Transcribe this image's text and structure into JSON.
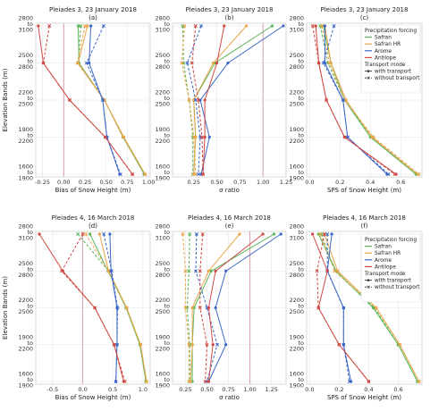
{
  "figure": {
    "ylabel": "Elevation Bands (m)",
    "elevation_bands": [
      "2800\nto\n3100",
      "2500\nto\n2800",
      "2200\nto\n2500",
      "1900\nto\n2200",
      "1600\nto\n1900"
    ],
    "colors": {
      "Safran": "#59b65a",
      "Safran HR": "#e9a64a",
      "Arome": "#3d67c8",
      "Antilope": "#cf4a45",
      "reference": "#d9a0a8",
      "grid": "#e6e6e6"
    },
    "legend": {
      "title1": "Precipitation forcing",
      "forcings": [
        "Safran",
        "Safran HR",
        "Arome",
        "Antilope"
      ],
      "title2": "Transport mode",
      "modes": [
        "with transport",
        "without transport"
      ]
    }
  },
  "chart_data": [
    {
      "type": "line",
      "id": "a",
      "title": "Pleiades 3, 23 January 2018",
      "subtitle": "(a)",
      "xlabel": "Bias of Snow Height (m)",
      "xlim": [
        -0.33,
        1.02
      ],
      "xticks": [
        -0.25,
        0.0,
        0.25,
        0.5,
        0.75,
        1.0
      ],
      "xtick_labels": [
        "-0.25",
        "0.00",
        "0.25",
        "0.50",
        "0.75",
        "1.00"
      ],
      "ref_line": 0,
      "series": [
        {
          "forcing": "Safran",
          "mode": "with",
          "values": [
            0.17,
            0.18,
            0.48,
            0.7,
            0.95
          ]
        },
        {
          "forcing": "Safran",
          "mode": "without",
          "values": [
            0.2,
            0.17,
            0.48,
            0.7,
            0.95
          ]
        },
        {
          "forcing": "Safran HR",
          "mode": "with",
          "values": [
            0.28,
            0.17,
            0.48,
            0.71,
            0.96
          ]
        },
        {
          "forcing": "Safran HR",
          "mode": "without",
          "values": [
            0.25,
            0.16,
            0.48,
            0.7,
            0.96
          ]
        },
        {
          "forcing": "Arome",
          "mode": "with",
          "values": [
            0.32,
            0.3,
            0.46,
            0.51,
            0.66
          ]
        },
        {
          "forcing": "Arome",
          "mode": "without",
          "values": [
            0.47,
            0.27,
            0.46,
            0.51,
            0.67
          ]
        },
        {
          "forcing": "Antilope",
          "mode": "with",
          "values": [
            -0.3,
            -0.24,
            0.07,
            0.49,
            0.81
          ]
        },
        {
          "forcing": "Antilope",
          "mode": "without",
          "values": [
            -0.17,
            -0.24,
            0.07,
            0.49,
            0.81
          ]
        }
      ]
    },
    {
      "type": "line",
      "id": "b",
      "title": "Pleiades 3, 23 January 2018",
      "subtitle": "(b)",
      "xlabel": "σ ratio",
      "xlim": [
        0.02,
        1.25
      ],
      "xticks": [
        0.25,
        0.5,
        0.75,
        1.0,
        1.25
      ],
      "xtick_labels": [
        "0.25",
        "0.50",
        "0.75",
        "1.00",
        "1.25"
      ],
      "ref_line": 1,
      "series": [
        {
          "forcing": "Safran",
          "mode": "with",
          "values": [
            1.1,
            0.48,
            0.25,
            0.27,
            0.25
          ]
        },
        {
          "forcing": "Safran",
          "mode": "without",
          "values": [
            0.13,
            0.14,
            0.2,
            0.24,
            0.24
          ]
        },
        {
          "forcing": "Safran HR",
          "mode": "with",
          "values": [
            0.82,
            0.46,
            0.25,
            0.27,
            0.25
          ]
        },
        {
          "forcing": "Safran HR",
          "mode": "without",
          "values": [
            0.15,
            0.12,
            0.2,
            0.25,
            0.27
          ]
        },
        {
          "forcing": "Arome",
          "mode": "with",
          "values": [
            1.22,
            0.62,
            0.32,
            0.42,
            0.33
          ]
        },
        {
          "forcing": "Arome",
          "mode": "without",
          "values": [
            0.33,
            0.18,
            0.27,
            0.32,
            0.3
          ]
        },
        {
          "forcing": "Antilope",
          "mode": "with",
          "values": [
            0.58,
            0.5,
            0.37,
            0.37,
            0.35
          ]
        },
        {
          "forcing": "Antilope",
          "mode": "without",
          "values": [
            0.27,
            0.23,
            0.3,
            0.34,
            0.35
          ]
        }
      ]
    },
    {
      "type": "line",
      "id": "c",
      "title": "Pleiades 3, 23 January 2018",
      "subtitle": "(c)",
      "xlabel": "SPS of Snow Height (m)",
      "xlim": [
        -0.02,
        0.74
      ],
      "xticks": [
        0.0,
        0.2,
        0.4,
        0.6
      ],
      "xtick_labels": [
        "0.0",
        "0.2",
        "0.4",
        "0.6"
      ],
      "series": [
        {
          "forcing": "Safran",
          "mode": "with",
          "values": [
            0.09,
            0.14,
            0.23,
            0.4,
            0.7
          ]
        },
        {
          "forcing": "Safran",
          "mode": "without",
          "values": [
            0.07,
            0.12,
            0.23,
            0.41,
            0.71
          ]
        },
        {
          "forcing": "Safran HR",
          "mode": "with",
          "values": [
            0.1,
            0.14,
            0.24,
            0.41,
            0.71
          ]
        },
        {
          "forcing": "Safran HR",
          "mode": "without",
          "values": [
            0.08,
            0.13,
            0.23,
            0.42,
            0.72
          ]
        },
        {
          "forcing": "Arome",
          "mode": "with",
          "values": [
            0.1,
            0.1,
            0.22,
            0.25,
            0.51
          ]
        },
        {
          "forcing": "Arome",
          "mode": "without",
          "values": [
            0.16,
            0.09,
            0.22,
            0.25,
            0.52
          ]
        },
        {
          "forcing": "Antilope",
          "mode": "with",
          "values": [
            0.04,
            0.06,
            0.11,
            0.23,
            0.57
          ]
        },
        {
          "forcing": "Antilope",
          "mode": "without",
          "values": [
            0.02,
            0.06,
            0.11,
            0.23,
            0.56
          ]
        }
      ]
    },
    {
      "type": "line",
      "id": "d",
      "title": "Pleiades 4, 16 March 2018",
      "subtitle": "(d)",
      "xlabel": "Bias of Snow Height (m)",
      "xlim": [
        -0.78,
        1.12
      ],
      "xticks": [
        -0.5,
        0.0,
        0.5,
        1.0
      ],
      "xtick_labels": [
        "-0.5",
        "0.0",
        "0.5",
        "1.0"
      ],
      "ref_line": 0,
      "series": [
        {
          "forcing": "Safran",
          "mode": "with",
          "values": [
            0.12,
            0.42,
            0.72,
            0.95,
            1.05
          ]
        },
        {
          "forcing": "Safran",
          "mode": "without",
          "values": [
            -0.08,
            0.43,
            0.72,
            0.95,
            1.05
          ]
        },
        {
          "forcing": "Safran HR",
          "mode": "with",
          "values": [
            0.28,
            0.43,
            0.73,
            0.96,
            1.06
          ]
        },
        {
          "forcing": "Safran HR",
          "mode": "without",
          "values": [
            0.05,
            0.43,
            0.73,
            0.96,
            1.06
          ]
        },
        {
          "forcing": "Arome",
          "mode": "with",
          "values": [
            0.45,
            0.47,
            0.57,
            0.57,
            0.55
          ]
        },
        {
          "forcing": "Arome",
          "mode": "without",
          "values": [
            0.35,
            0.48,
            0.58,
            0.57,
            0.55
          ]
        },
        {
          "forcing": "Antilope",
          "mode": "with",
          "values": [
            -0.72,
            -0.33,
            0.2,
            0.52,
            0.68
          ]
        },
        {
          "forcing": "Antilope",
          "mode": "without",
          "values": [
            0.0,
            -0.35,
            0.2,
            0.52,
            0.7
          ]
        }
      ]
    },
    {
      "type": "line",
      "id": "e",
      "title": "Pleiades 4, 16 March 2018",
      "subtitle": "(e)",
      "xlabel": "σ ratio",
      "xlim": [
        0.1,
        1.42
      ],
      "xticks": [
        0.25,
        0.5,
        0.75,
        1.0,
        1.25
      ],
      "xtick_labels": [
        "0.25",
        "0.50",
        "0.75",
        "1.00",
        "1.25"
      ],
      "ref_line": 1,
      "series": [
        {
          "forcing": "Safran",
          "mode": "with",
          "values": [
            1.28,
            0.55,
            0.35,
            0.33,
            0.33
          ]
        },
        {
          "forcing": "Safran",
          "mode": "without",
          "values": [
            0.3,
            0.29,
            0.27,
            0.3,
            0.3
          ]
        },
        {
          "forcing": "Safran HR",
          "mode": "with",
          "values": [
            0.88,
            0.52,
            0.33,
            0.33,
            0.31
          ]
        },
        {
          "forcing": "Safran HR",
          "mode": "without",
          "values": [
            0.22,
            0.25,
            0.25,
            0.29,
            0.29
          ]
        },
        {
          "forcing": "Arome",
          "mode": "with",
          "values": [
            1.36,
            0.72,
            0.6,
            0.72,
            0.52
          ]
        },
        {
          "forcing": "Arome",
          "mode": "without",
          "values": [
            0.38,
            0.37,
            0.5,
            0.62,
            0.5
          ]
        },
        {
          "forcing": "Antilope",
          "mode": "with",
          "values": [
            1.15,
            0.6,
            0.52,
            0.57,
            0.52
          ]
        },
        {
          "forcing": "Antilope",
          "mode": "without",
          "values": [
            0.45,
            0.42,
            0.42,
            0.5,
            0.48
          ]
        }
      ]
    },
    {
      "type": "line",
      "id": "f",
      "title": "Pleiades 4, 16 March 2018",
      "subtitle": "(f)",
      "xlabel": "SPS of Snow Height (m)",
      "xlim": [
        -0.02,
        0.76
      ],
      "xticks": [
        0.0,
        0.2,
        0.4,
        0.6
      ],
      "xtick_labels": [
        "0.0",
        "0.2",
        "0.4",
        "0.6"
      ],
      "series": [
        {
          "forcing": "Safran",
          "mode": "with",
          "values": [
            0.06,
            0.18,
            0.43,
            0.6,
            0.73
          ]
        },
        {
          "forcing": "Safran",
          "mode": "without",
          "values": [
            0.08,
            0.17,
            0.44,
            0.6,
            0.73
          ]
        },
        {
          "forcing": "Safran HR",
          "mode": "with",
          "values": [
            0.1,
            0.19,
            0.45,
            0.61,
            0.74
          ]
        },
        {
          "forcing": "Safran HR",
          "mode": "without",
          "values": [
            0.07,
            0.17,
            0.45,
            0.61,
            0.74
          ]
        },
        {
          "forcing": "Arome",
          "mode": "with",
          "values": [
            0.15,
            0.12,
            0.23,
            0.23,
            0.28
          ]
        },
        {
          "forcing": "Arome",
          "mode": "without",
          "values": [
            0.12,
            0.12,
            0.23,
            0.23,
            0.27
          ]
        },
        {
          "forcing": "Antilope",
          "mode": "with",
          "values": [
            0.02,
            0.12,
            0.06,
            0.2,
            0.4
          ]
        },
        {
          "forcing": "Antilope",
          "mode": "without",
          "values": [
            0.1,
            0.05,
            0.06,
            0.2,
            0.4
          ]
        }
      ]
    }
  ]
}
